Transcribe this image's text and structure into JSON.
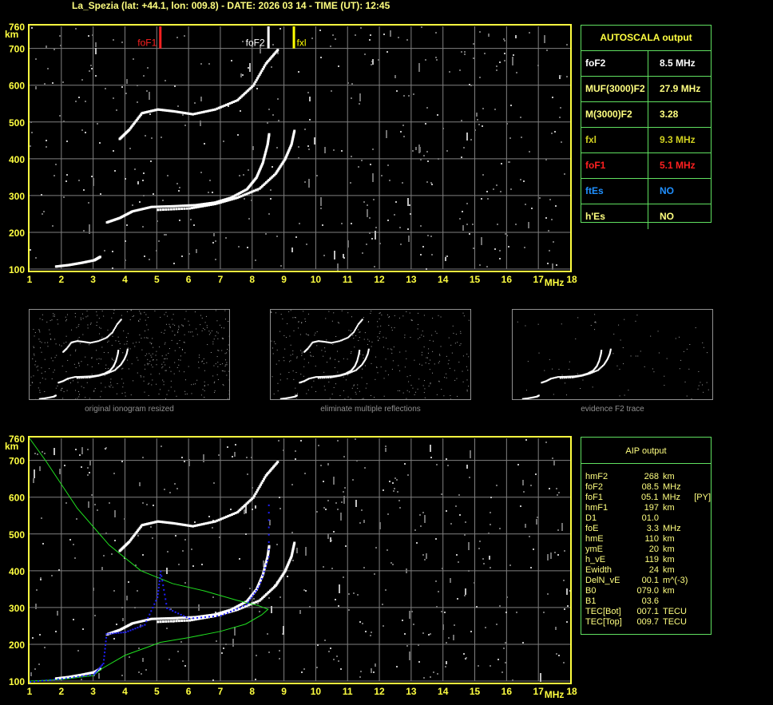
{
  "header": {
    "title": "La_Spezia (lat: +44.1, lon: 009.8) - DATE: 2026 03 14 - TIME (UT): 12:45"
  },
  "colors": {
    "axis": "#ffff40",
    "grid": "#808080",
    "foF1": "#ff2020",
    "foF2": "#ffffff",
    "fxl": "#ffff00",
    "profile": "#20e020",
    "fit": "#2020ff",
    "table_border": "#60e060"
  },
  "chart_data": [
    {
      "type": "scatter",
      "name_hint": "ionogram-top",
      "xlabel": "MHz",
      "ylabel": "km",
      "xlim": [
        1,
        18
      ],
      "ylim": [
        100,
        760
      ],
      "xticks": [
        "1",
        "2",
        "3",
        "4",
        "5",
        "6",
        "7",
        "8",
        "9",
        "10",
        "11",
        "12",
        "13",
        "14",
        "15",
        "16",
        "17",
        "18"
      ],
      "yticks": [
        "760",
        "700",
        "600",
        "500",
        "400",
        "300",
        "200",
        "100"
      ],
      "grid": true,
      "markers": [
        {
          "label": "foF1",
          "x": 5.1,
          "color": "#ff2020"
        },
        {
          "label": "foF2",
          "x": 8.5,
          "color": "#ffffff"
        },
        {
          "label": "fxl",
          "x": 9.3,
          "color": "#ffff00"
        }
      ],
      "traces": {
        "E": [
          [
            1.8,
            108
          ],
          [
            2.2,
            112
          ],
          [
            2.6,
            118
          ],
          [
            3.0,
            125
          ],
          [
            3.2,
            135
          ]
        ],
        "F_ordinary": [
          [
            3.4,
            228
          ],
          [
            3.8,
            240
          ],
          [
            4.2,
            258
          ],
          [
            4.8,
            270
          ],
          [
            5.5,
            272
          ],
          [
            6.2,
            275
          ],
          [
            6.8,
            282
          ],
          [
            7.3,
            295
          ],
          [
            7.8,
            318
          ],
          [
            8.1,
            350
          ],
          [
            8.3,
            390
          ],
          [
            8.45,
            440
          ],
          [
            8.5,
            470
          ]
        ],
        "F_extraordinary": [
          [
            5.0,
            262
          ],
          [
            6.0,
            266
          ],
          [
            6.8,
            278
          ],
          [
            7.5,
            295
          ],
          [
            8.2,
            320
          ],
          [
            8.7,
            360
          ],
          [
            9.0,
            400
          ],
          [
            9.2,
            440
          ],
          [
            9.3,
            480
          ]
        ],
        "second_hop": [
          [
            3.8,
            455
          ],
          [
            4.1,
            480
          ],
          [
            4.5,
            525
          ],
          [
            5.0,
            535
          ],
          [
            5.5,
            530
          ],
          [
            6.1,
            522
          ],
          [
            6.8,
            535
          ],
          [
            7.5,
            560
          ],
          [
            8.0,
            600
          ],
          [
            8.4,
            660
          ],
          [
            8.8,
            700
          ]
        ]
      }
    },
    {
      "type": "scatter",
      "name_hint": "ionogram-bottom",
      "xlabel": "MHz",
      "ylabel": "km",
      "xlim": [
        1,
        18
      ],
      "ylim": [
        100,
        760
      ],
      "xticks": [
        "1",
        "2",
        "3",
        "4",
        "5",
        "6",
        "7",
        "8",
        "9",
        "10",
        "11",
        "12",
        "13",
        "14",
        "15",
        "16",
        "17",
        "18"
      ],
      "yticks": [
        "760",
        "700",
        "600",
        "500",
        "400",
        "300",
        "200",
        "100"
      ],
      "grid": true,
      "profile": [
        [
          1,
          100
        ],
        [
          2,
          104
        ],
        [
          3,
          115
        ],
        [
          3.3,
          135
        ],
        [
          4,
          170
        ],
        [
          4.8,
          195
        ],
        [
          5.1,
          205
        ],
        [
          6,
          218
        ],
        [
          7,
          235
        ],
        [
          7.8,
          255
        ],
        [
          8.3,
          280
        ],
        [
          8.5,
          295
        ],
        [
          8.2,
          305
        ],
        [
          7.5,
          320
        ],
        [
          6.5,
          345
        ],
        [
          5.5,
          365
        ],
        [
          4.5,
          400
        ],
        [
          3.5,
          470
        ],
        [
          2.5,
          570
        ],
        [
          1.5,
          700
        ],
        [
          1,
          760
        ]
      ],
      "fit": [
        [
          1,
          100
        ],
        [
          2,
          108
        ],
        [
          3,
          120
        ],
        [
          3.3,
          150
        ],
        [
          3.4,
          230
        ],
        [
          4,
          235
        ],
        [
          4.6,
          255
        ],
        [
          5.0,
          330
        ],
        [
          5.1,
          400
        ],
        [
          5.3,
          300
        ],
        [
          6,
          272
        ],
        [
          7,
          280
        ],
        [
          7.8,
          310
        ],
        [
          8.2,
          360
        ],
        [
          8.5,
          440
        ],
        [
          8.5,
          600
        ]
      ]
    }
  ],
  "autoscala": {
    "title": "AUTOSCALA output",
    "rows": [
      {
        "key": "foF2",
        "value": "8.5 MHz",
        "color": "#ffffff"
      },
      {
        "key": "MUF(3000)F2",
        "value": "27.9 MHz",
        "color": "#ffff80"
      },
      {
        "key": "M(3000)F2",
        "value": "3.28",
        "color": "#ffff80"
      },
      {
        "key": "fxl",
        "value": "9.3 MHz",
        "color": "#d0d020"
      },
      {
        "key": "foF1",
        "value": "5.1 MHz",
        "color": "#ff2020"
      },
      {
        "key": "ftEs",
        "value": "NO",
        "color": "#2090ff"
      },
      {
        "key": "h'Es",
        "value": "NO",
        "color": "#ffff80"
      }
    ]
  },
  "aip": {
    "title": "AIP output",
    "rows": [
      [
        "hmF2",
        "268",
        "km",
        ""
      ],
      [
        "foF2",
        "08.5",
        "MHz",
        ""
      ],
      [
        "foF1",
        "05.1",
        "MHz",
        "[PY]"
      ],
      [
        "hmF1",
        "197",
        "km",
        ""
      ],
      [
        "D1",
        "01.0",
        "",
        ""
      ],
      [
        "foE",
        "3.3",
        "MHz",
        ""
      ],
      [
        "hmE",
        "110",
        "km",
        ""
      ],
      [
        "ymE",
        "20",
        "km",
        ""
      ],
      [
        "h_vE",
        "119",
        "km",
        ""
      ],
      [
        "Ewidth",
        "24",
        "km",
        ""
      ],
      [
        "DelN_vE",
        "00.1",
        "m^(-3)",
        ""
      ],
      [
        "B0",
        "079.0",
        "km",
        ""
      ],
      [
        "B1",
        "03.6",
        "",
        ""
      ],
      [
        "TEC[Bot]",
        "007.1",
        "TECU",
        ""
      ],
      [
        "TEC[Top]",
        "009.7",
        "TECU",
        ""
      ]
    ]
  },
  "thumbnails": [
    {
      "caption": "original ionogram resized"
    },
    {
      "caption": "eliminate multiple reflections"
    },
    {
      "caption": "evidence F2 trace"
    }
  ]
}
